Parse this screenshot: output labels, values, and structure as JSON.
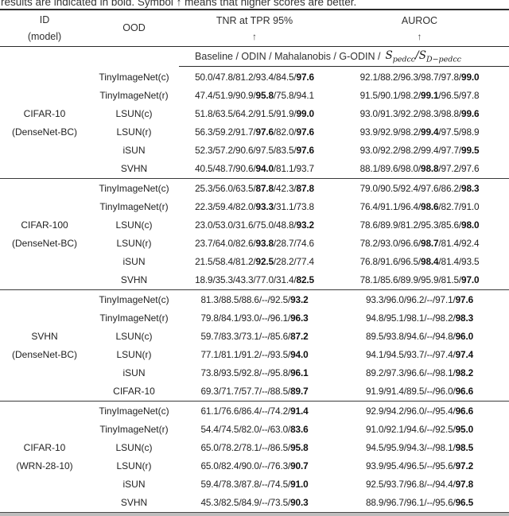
{
  "caption": "results are indicated in bold. Symbol ↑ means that higher scores are better.",
  "header": {
    "id": "ID",
    "id_model": "(model)",
    "ood": "OOD",
    "tnr": "TNR at TPR 95%",
    "auroc": "AUROC",
    "up_arrow": "↑"
  },
  "subheader": {
    "methods_prefix": "Baseline / ODIN / Mahalanobis / G-ODIN /",
    "score1_base": "S",
    "score1_sub": "pedcc",
    "separator": "/",
    "score2_base": "S",
    "score2_sub": "D−pedcc"
  },
  "colors": {
    "text": "#222222",
    "rule_dark": "#2b2b2b",
    "bottom_band": "#bdbdbd"
  },
  "table": {
    "groups": [
      {
        "id": [
          "CIFAR-10",
          "(DenseNet-BC)"
        ],
        "rows": [
          {
            "ood": "TinyImageNet(c)",
            "tnr": [
              "50.0",
              "47.8",
              "81.2",
              "93.4",
              "84.5",
              "97.6"
            ],
            "tnr_bold": [
              5
            ],
            "auroc": [
              "92.1",
              "88.2",
              "96.3",
              "98.7",
              "97.8",
              "99.0"
            ],
            "auroc_bold": [
              5
            ]
          },
          {
            "ood": "TinyImageNet(r)",
            "tnr": [
              "47.4",
              "51.9",
              "90.9",
              "95.8",
              "75.8",
              "94.1"
            ],
            "tnr_bold": [
              3
            ],
            "auroc": [
              "91.5",
              "90.1",
              "98.2",
              "99.1",
              "96.5",
              "97.8"
            ],
            "auroc_bold": [
              3
            ]
          },
          {
            "ood": "LSUN(c)",
            "tnr": [
              "51.8",
              "63.5",
              "64.2",
              "91.5",
              "91.9",
              "99.0"
            ],
            "tnr_bold": [
              5
            ],
            "auroc": [
              "93.0",
              "91.3",
              "92.2",
              "98.3",
              "98.8",
              "99.6"
            ],
            "auroc_bold": [
              5
            ]
          },
          {
            "ood": "LSUN(r)",
            "tnr": [
              "56.3",
              "59.2",
              "91.7",
              "97.6",
              "82.0",
              "97.6"
            ],
            "tnr_bold": [
              3,
              5
            ],
            "auroc": [
              "93.9",
              "92.9",
              "98.2",
              "99.4",
              "97.5",
              "98.9"
            ],
            "auroc_bold": [
              3
            ]
          },
          {
            "ood": "iSUN",
            "tnr": [
              "52.3",
              "57.2",
              "90.6",
              "97.5",
              "83.5",
              "97.6"
            ],
            "tnr_bold": [
              5
            ],
            "auroc": [
              "93.0",
              "92.2",
              "98.2",
              "99.4",
              "97.7",
              "99.5"
            ],
            "auroc_bold": [
              5
            ]
          },
          {
            "ood": "SVHN",
            "tnr": [
              "40.5",
              "48.7",
              "90.6",
              "94.0",
              "81.1",
              "93.7"
            ],
            "tnr_bold": [
              3
            ],
            "auroc": [
              "88.1",
              "89.6",
              "98.0",
              "98.8",
              "97.2",
              "97.6"
            ],
            "auroc_bold": [
              3
            ]
          }
        ]
      },
      {
        "id": [
          "CIFAR-100",
          "(DenseNet-BC)"
        ],
        "rows": [
          {
            "ood": "TinyImageNet(c)",
            "tnr": [
              "25.3",
              "56.0",
              "63.5",
              "87.8",
              "42.3",
              "87.8"
            ],
            "tnr_bold": [
              3,
              5
            ],
            "auroc": [
              "79.0",
              "90.5",
              "92.4",
              "97.6",
              "86.2",
              "98.3"
            ],
            "auroc_bold": [
              5
            ]
          },
          {
            "ood": "TinyImageNet(r)",
            "tnr": [
              "22.3",
              "59.4",
              "82.0",
              "93.3",
              "31.1",
              "73.8"
            ],
            "tnr_bold": [
              3
            ],
            "auroc": [
              "76.4",
              "91.1",
              "96.4",
              "98.6",
              "82.7",
              "91.0"
            ],
            "auroc_bold": [
              3
            ]
          },
          {
            "ood": "LSUN(c)",
            "tnr": [
              "23.0",
              "53.0",
              "31.6",
              "75.0",
              "48.8",
              "93.2"
            ],
            "tnr_bold": [
              5
            ],
            "auroc": [
              "78.6",
              "89.9",
              "81.2",
              "95.3",
              "85.6",
              "98.0"
            ],
            "auroc_bold": [
              5
            ]
          },
          {
            "ood": "LSUN(r)",
            "tnr": [
              "23.7",
              "64.0",
              "82.6",
              "93.8",
              "28.7",
              "74.6"
            ],
            "tnr_bold": [
              3
            ],
            "auroc": [
              "78.2",
              "93.0",
              "96.6",
              "98.7",
              "81.4",
              "92.4"
            ],
            "auroc_bold": [
              3
            ]
          },
          {
            "ood": "iSUN",
            "tnr": [
              "21.5",
              "58.4",
              "81.2",
              "92.5",
              "28.2",
              "77.4"
            ],
            "tnr_bold": [
              3
            ],
            "auroc": [
              "76.8",
              "91.6",
              "96.5",
              "98.4",
              "81.4",
              "93.5"
            ],
            "auroc_bold": [
              3
            ]
          },
          {
            "ood": "SVHN",
            "tnr": [
              "18.9",
              "35.3",
              "43.3",
              "77.0",
              "31.4",
              "82.5"
            ],
            "tnr_bold": [
              5
            ],
            "auroc": [
              "78.1",
              "85.6",
              "89.9",
              "95.9",
              "81.5",
              "97.0"
            ],
            "auroc_bold": [
              5
            ]
          }
        ]
      },
      {
        "id": [
          "SVHN",
          "(DenseNet-BC)"
        ],
        "rows": [
          {
            "ood": "TinyImageNet(c)",
            "tnr": [
              "81.3",
              "88.5",
              "88.6",
              "--",
              "92.5",
              "93.2"
            ],
            "tnr_bold": [
              5
            ],
            "auroc": [
              "93.3",
              "96.0",
              "96.2",
              "--",
              "97.1",
              "97.6"
            ],
            "auroc_bold": [
              5
            ]
          },
          {
            "ood": "TinyImageNet(r)",
            "tnr": [
              "79.8",
              "84.1",
              "93.0",
              "--",
              "96.1",
              "96.3"
            ],
            "tnr_bold": [
              5
            ],
            "auroc": [
              "94.8",
              "95.1",
              "98.1",
              "--",
              "98.2",
              "98.3"
            ],
            "auroc_bold": [
              5
            ]
          },
          {
            "ood": "LSUN(c)",
            "tnr": [
              "59.7",
              "83.3",
              "73.1",
              "--",
              "85.6",
              "87.2"
            ],
            "tnr_bold": [
              5
            ],
            "auroc": [
              "89.5",
              "93.8",
              "94.6",
              "--",
              "94.8",
              "96.0"
            ],
            "auroc_bold": [
              5
            ]
          },
          {
            "ood": "LSUN(r)",
            "tnr": [
              "77.1",
              "81.1",
              "91.2",
              "--",
              "93.5",
              "94.0"
            ],
            "tnr_bold": [
              5
            ],
            "auroc": [
              "94.1",
              "94.5",
              "93.7",
              "--",
              "97.4",
              "97.4"
            ],
            "auroc_bold": [
              5
            ]
          },
          {
            "ood": "iSUN",
            "tnr": [
              "73.8",
              "93.5",
              "92.8",
              "--",
              "95.8",
              "96.1"
            ],
            "tnr_bold": [
              5
            ],
            "auroc": [
              "89.2",
              "97.3",
              "96.6",
              "--",
              "98.1",
              "98.2"
            ],
            "auroc_bold": [
              5
            ]
          },
          {
            "ood": "CIFAR-10",
            "tnr": [
              "69.3",
              "71.7",
              "57.7",
              "--",
              "88.5",
              "89.7"
            ],
            "tnr_bold": [
              5
            ],
            "auroc": [
              "91.9",
              "91.4",
              "89.5",
              "--",
              "96.0",
              "96.6"
            ],
            "auroc_bold": [
              5
            ]
          }
        ]
      },
      {
        "id": [
          "CIFAR-10",
          "(WRN-28-10)"
        ],
        "rows": [
          {
            "ood": "TinyImageNet(c)",
            "tnr": [
              "61.1",
              "76.6",
              "86.4",
              "--",
              "74.2",
              "91.4"
            ],
            "tnr_bold": [
              5
            ],
            "auroc": [
              "92.9",
              "94.2",
              "96.0",
              "--",
              "95.4",
              "96.6"
            ],
            "auroc_bold": [
              5
            ]
          },
          {
            "ood": "TinyImageNet(r)",
            "tnr": [
              "54.4",
              "74.5",
              "82.0",
              "--",
              "63.0",
              "83.6"
            ],
            "tnr_bold": [
              5
            ],
            "auroc": [
              "91.0",
              "92.1",
              "94.6",
              "--",
              "92.5",
              "95.0"
            ],
            "auroc_bold": [
              5
            ]
          },
          {
            "ood": "LSUN(c)",
            "tnr": [
              "65.0",
              "78.2",
              "78.1",
              "--",
              "86.5",
              "95.8"
            ],
            "tnr_bold": [
              5
            ],
            "auroc": [
              "94.5",
              "95.9",
              "94.3",
              "--",
              "98.1",
              "98.5"
            ],
            "auroc_bold": [
              5
            ]
          },
          {
            "ood": "LSUN(r)",
            "tnr": [
              "65.0",
              "82.4",
              "90.0",
              "--",
              "76.3",
              "90.7"
            ],
            "tnr_bold": [
              5
            ],
            "auroc": [
              "93.9",
              "95.4",
              "96.5",
              "--",
              "95.6",
              "97.2"
            ],
            "auroc_bold": [
              5
            ]
          },
          {
            "ood": "iSUN",
            "tnr": [
              "59.4",
              "78.3",
              "87.8",
              "--",
              "74.5",
              "91.0"
            ],
            "tnr_bold": [
              5
            ],
            "auroc": [
              "92.5",
              "93.7",
              "96.8",
              "--",
              "94.4",
              "97.8"
            ],
            "auroc_bold": [
              5
            ]
          },
          {
            "ood": "SVHN",
            "tnr": [
              "45.3",
              "82.5",
              "84.9",
              "--",
              "73.5",
              "90.3"
            ],
            "tnr_bold": [
              5
            ],
            "auroc": [
              "88.9",
              "96.7",
              "96.1",
              "--",
              "95.6",
              "96.5"
            ],
            "auroc_bold": [
              5
            ]
          }
        ]
      }
    ]
  }
}
